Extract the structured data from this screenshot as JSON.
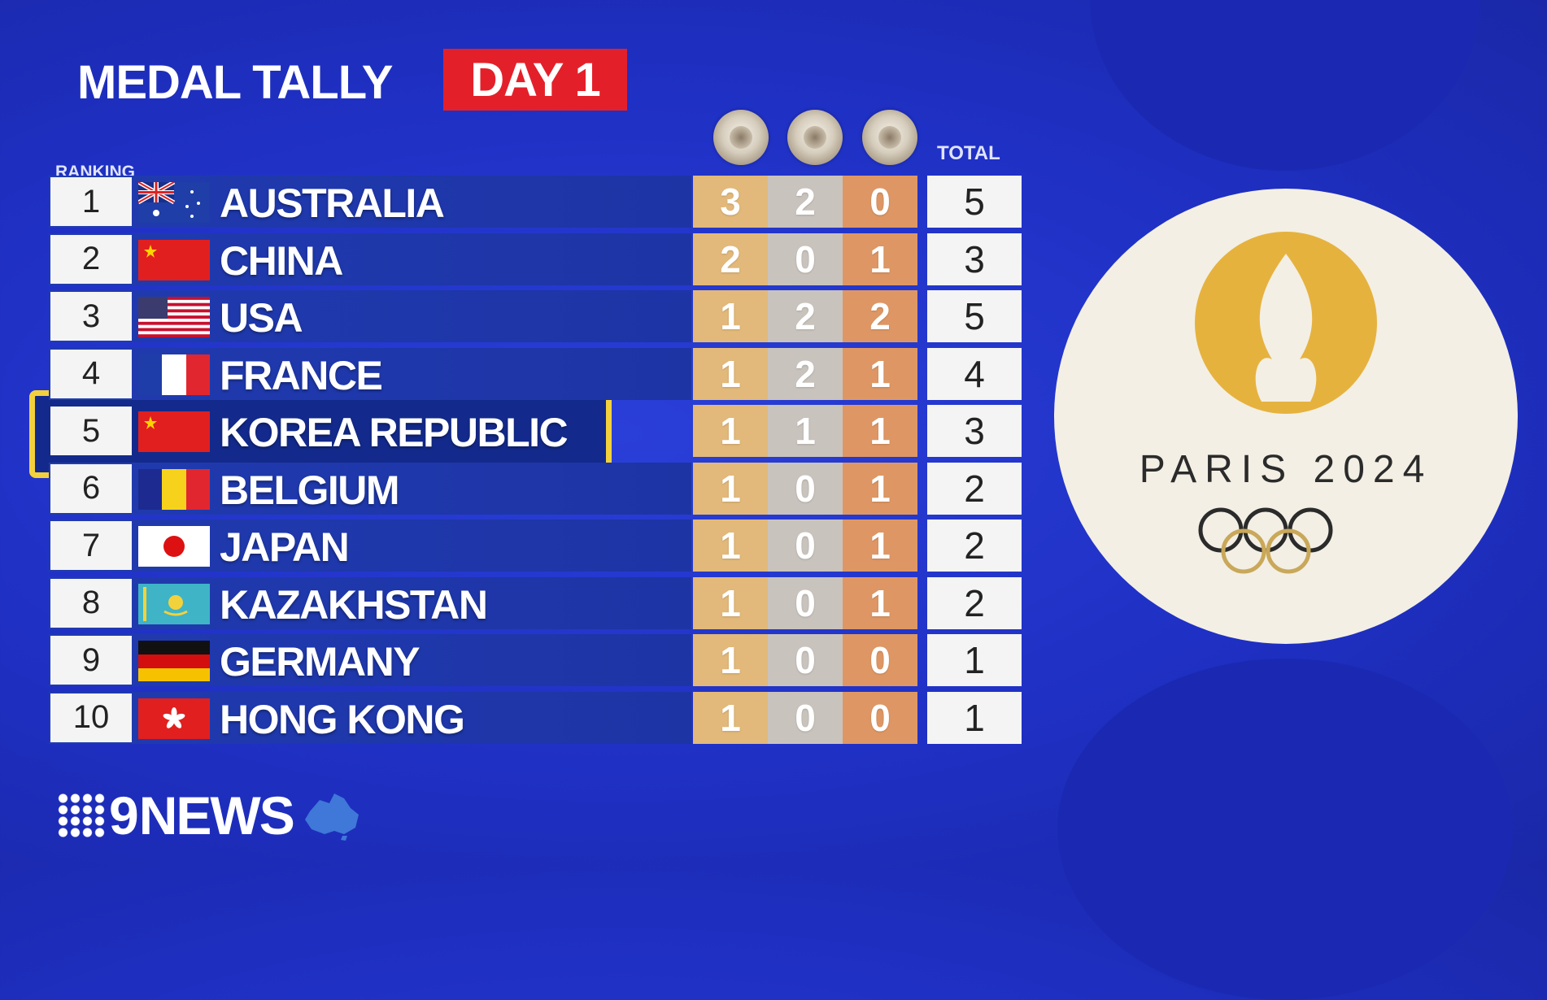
{
  "header": {
    "title": "MEDAL TALLY",
    "badge": "DAY 1"
  },
  "columns": {
    "ranking": "RANKING",
    "total": "TOTAL"
  },
  "medal_icons": [
    "gold-medal-icon",
    "silver-medal-icon",
    "bronze-medal-icon"
  ],
  "rows": [
    {
      "rank": "1",
      "country": "AUSTRALIA",
      "flag": "australia-flag",
      "gold": "3",
      "silver": "2",
      "bronze": "0",
      "total": "5"
    },
    {
      "rank": "2",
      "country": "CHINA",
      "flag": "china-flag",
      "gold": "2",
      "silver": "0",
      "bronze": "1",
      "total": "3"
    },
    {
      "rank": "3",
      "country": "USA",
      "flag": "usa-flag",
      "gold": "1",
      "silver": "2",
      "bronze": "2",
      "total": "5"
    },
    {
      "rank": "4",
      "country": "FRANCE",
      "flag": "france-flag",
      "gold": "1",
      "silver": "2",
      "bronze": "1",
      "total": "4"
    },
    {
      "rank": "5",
      "country": "KOREA REPUBLIC",
      "flag": "china-flag",
      "gold": "1",
      "silver": "1",
      "bronze": "1",
      "total": "3"
    },
    {
      "rank": "6",
      "country": "BELGIUM",
      "flag": "belgium-flag",
      "gold": "1",
      "silver": "0",
      "bronze": "1",
      "total": "2"
    },
    {
      "rank": "7",
      "country": "JAPAN",
      "flag": "japan-flag",
      "gold": "1",
      "silver": "0",
      "bronze": "1",
      "total": "2"
    },
    {
      "rank": "8",
      "country": "KAZAKHSTAN",
      "flag": "kazakhstan-flag",
      "gold": "1",
      "silver": "0",
      "bronze": "1",
      "total": "2"
    },
    {
      "rank": "9",
      "country": "GERMANY",
      "flag": "germany-flag",
      "gold": "1",
      "silver": "0",
      "bronze": "0",
      "total": "1"
    },
    {
      "rank": "10",
      "country": "HONG KONG",
      "flag": "hong-kong-flag",
      "gold": "1",
      "silver": "0",
      "bronze": "0",
      "total": "1"
    }
  ],
  "highlighted_rank": "5",
  "logo": {
    "text": "PARIS 2024"
  },
  "broadcaster": {
    "name": "NEWS",
    "prefix": "9"
  },
  "colors": {
    "background": "#1f30c4",
    "badge": "#e3202a",
    "highlight": "#f3d13c",
    "gold_cell": "#e2b97a",
    "silver_cell": "#c9c3bd",
    "bronze_cell": "#de9764",
    "logo_gold": "#e6b23e"
  }
}
